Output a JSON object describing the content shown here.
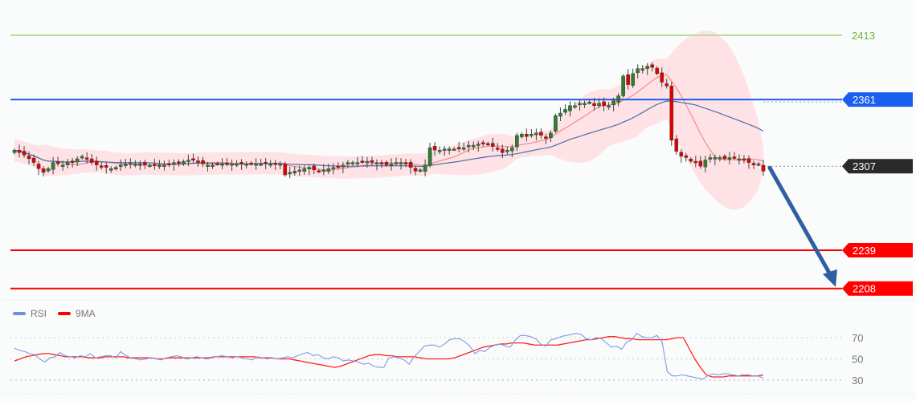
{
  "chart_data": {
    "type": "candlestick",
    "title": "",
    "xlabel": "",
    "ylabel": "",
    "ylim": [
      2195,
      2430
    ],
    "price_levels": [
      {
        "label": "2413",
        "value": 2413,
        "color": "#8cc63f",
        "style": "solid-light",
        "label_style": "text"
      },
      {
        "label": "2361",
        "value": 2361,
        "color": "#1a5ef0",
        "style": "solid",
        "label_style": "tag"
      },
      {
        "label": "2307",
        "value": 2307,
        "color": "#333333",
        "style": "dotted",
        "label_style": "tag",
        "note": "current price"
      },
      {
        "label": "2239",
        "value": 2239,
        "color": "#ff0000",
        "style": "solid",
        "label_style": "tag"
      },
      {
        "label": "2208",
        "value": 2208,
        "color": "#ff0000",
        "style": "solid",
        "label_style": "tag"
      }
    ],
    "close_path": [
      2320,
      2318,
      2316,
      2313,
      2310,
      2305,
      2302,
      2305,
      2310,
      2309,
      2308,
      2310,
      2311,
      2313,
      2315,
      2313,
      2310,
      2308,
      2307,
      2306,
      2305,
      2306,
      2308,
      2309,
      2310,
      2309,
      2309,
      2308,
      2308,
      2308,
      2308,
      2308,
      2309,
      2310,
      2310,
      2311,
      2312,
      2312,
      2311,
      2309,
      2308,
      2308,
      2309,
      2309,
      2309,
      2309,
      2309,
      2309,
      2309,
      2309,
      2309,
      2309,
      2309,
      2309,
      2309,
      2309,
      2300,
      2302,
      2303,
      2304,
      2305,
      2306,
      2304,
      2303,
      2304,
      2305,
      2306,
      2307,
      2308,
      2310,
      2310,
      2310,
      2311,
      2311,
      2310,
      2310,
      2309,
      2308,
      2309,
      2310,
      2310,
      2309,
      2306,
      2303,
      2304,
      2308,
      2322,
      2320,
      2320,
      2321,
      2321,
      2321,
      2322,
      2322,
      2324,
      2324,
      2325,
      2326,
      2325,
      2323,
      2321,
      2318,
      2320,
      2322,
      2332,
      2333,
      2331,
      2333,
      2334,
      2332,
      2330,
      2334,
      2348,
      2350,
      2353,
      2356,
      2356,
      2358,
      2358,
      2359,
      2356,
      2358,
      2356,
      2356,
      2360,
      2364,
      2380,
      2373,
      2382,
      2386,
      2386,
      2388,
      2387,
      2382,
      2375,
      2372,
      2328,
      2319,
      2315,
      2314,
      2311,
      2310,
      2307,
      2312,
      2314,
      2314,
      2314,
      2313,
      2314,
      2314,
      2313,
      2312,
      2310,
      2308,
      2309,
      2303
    ],
    "rsi": {
      "levels": [
        70,
        50,
        30
      ],
      "rsi_values": [
        60,
        58,
        57,
        55,
        54,
        50,
        47,
        51,
        52,
        56,
        53,
        52,
        51,
        53,
        52,
        55,
        51,
        52,
        53,
        53,
        51,
        57,
        53,
        51,
        50,
        49,
        50,
        51,
        50,
        49,
        51,
        52,
        53,
        52,
        50,
        51,
        52,
        51,
        50,
        51,
        52,
        53,
        52,
        51,
        52,
        51,
        50,
        49,
        52,
        51,
        50,
        51,
        50,
        51,
        52,
        51,
        53,
        55,
        56,
        53,
        54,
        51,
        50,
        52,
        51,
        48,
        49,
        48,
        47,
        45,
        46,
        43,
        42,
        42,
        51,
        52,
        51,
        49,
        45,
        52,
        57,
        62,
        63,
        63,
        61,
        64,
        68,
        69,
        69,
        66,
        62,
        55,
        58,
        57,
        61,
        63,
        64,
        62,
        61,
        68,
        72,
        72,
        71,
        69,
        64,
        62,
        68,
        69,
        71,
        72,
        73,
        74,
        73,
        69,
        68,
        70,
        69,
        65,
        61,
        62,
        59,
        66,
        68,
        74,
        71,
        70,
        70,
        72,
        66,
        38,
        34,
        34,
        35,
        34,
        33,
        32,
        31,
        34,
        36,
        35,
        36,
        36,
        35,
        34,
        35,
        35,
        34,
        34,
        32
      ],
      "ma9_values": [
        48,
        50,
        52,
        53,
        54,
        55,
        55,
        54,
        53,
        52,
        52,
        52,
        52,
        51,
        51,
        51,
        52,
        52,
        52,
        52,
        51,
        51,
        51,
        51,
        51,
        50,
        50,
        51,
        51,
        51,
        51,
        51,
        51,
        51,
        51,
        52,
        52,
        52,
        52,
        52,
        52,
        52,
        52,
        51,
        51,
        51,
        50,
        50,
        50,
        49,
        48,
        47,
        46,
        45,
        44,
        43,
        42,
        43,
        45,
        47,
        49,
        51,
        53,
        54,
        54,
        53,
        53,
        52,
        52,
        52,
        52,
        51,
        50,
        50,
        50,
        50,
        50,
        51,
        53,
        55,
        57,
        59,
        61,
        62,
        63,
        64,
        64,
        65,
        65,
        65,
        64,
        63,
        63,
        63,
        63,
        63,
        64,
        65,
        66,
        67,
        68,
        68,
        69,
        70,
        71,
        71,
        70,
        69,
        69,
        68,
        68,
        68,
        68,
        68,
        68,
        69,
        70,
        70,
        60,
        50,
        42,
        35,
        33,
        33,
        33,
        34,
        34,
        34,
        34,
        34,
        34,
        35
      ],
      "legend": [
        {
          "label": "RSI",
          "color": "#6f8fe0"
        },
        {
          "label": "9MA",
          "color": "#ff0000"
        }
      ]
    },
    "forecast_arrow": {
      "from_price": 2307,
      "to_price": 2208,
      "color": "#2f5fa3",
      "direction": "down"
    },
    "overlays": [
      "Bollinger-style envelope (pink)",
      "fast moving average (red)",
      "slow moving average (blue)"
    ]
  },
  "labels": {
    "r2413": "2413",
    "r2361": "2361",
    "r2307": "2307",
    "r2239": "2239",
    "r2208": "2208",
    "rsi70": "70",
    "rsi50": "50",
    "rsi30": "30",
    "legend_rsi": "RSI",
    "legend_ma": "9MA"
  }
}
